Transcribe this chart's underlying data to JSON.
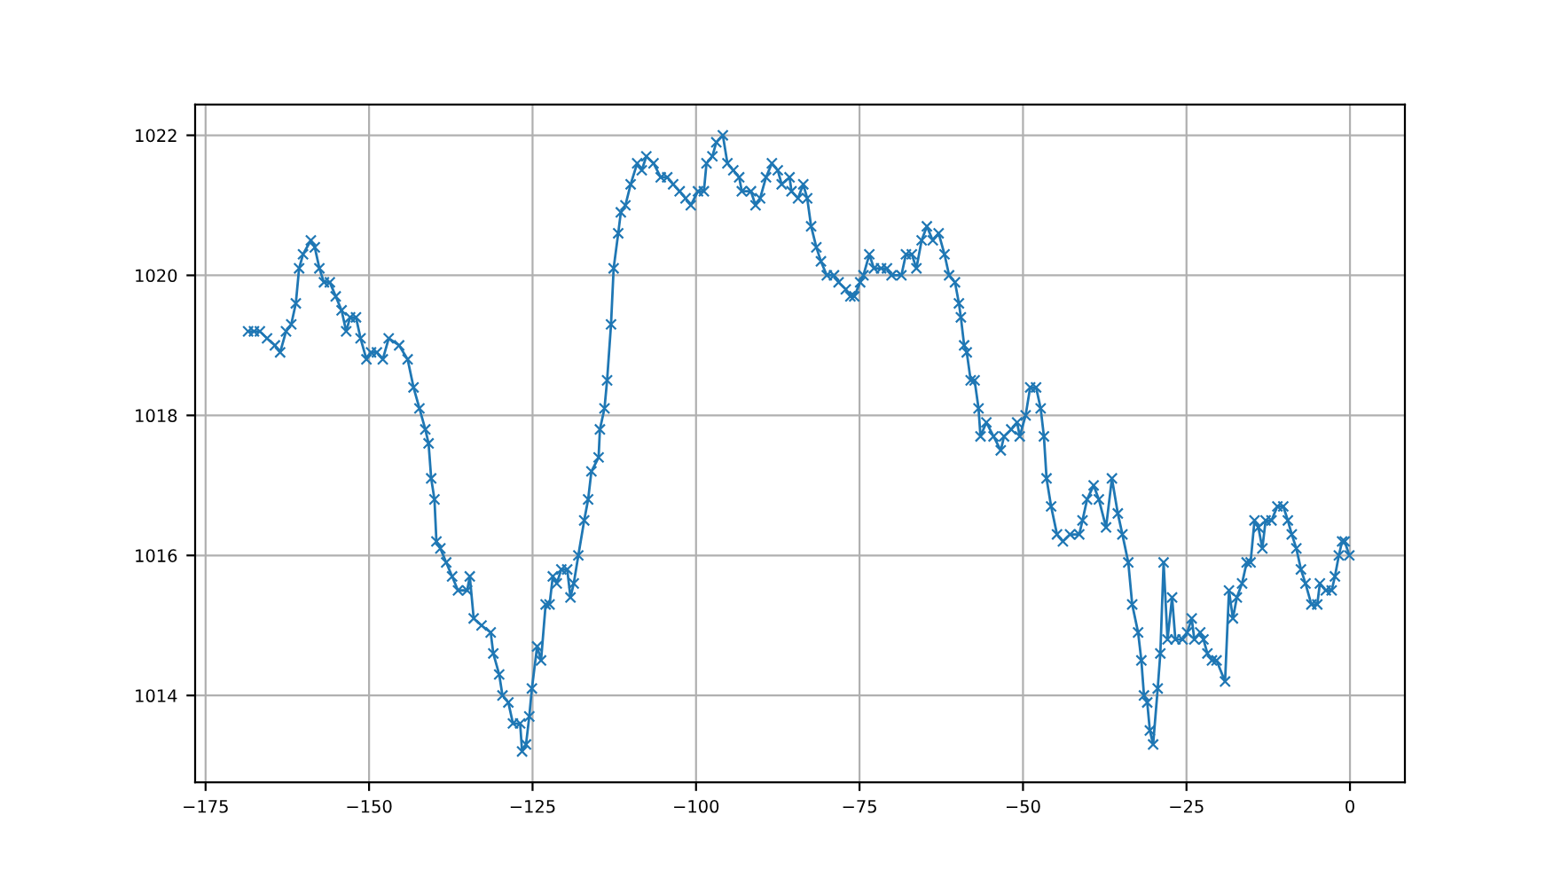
{
  "chart_data": {
    "type": "line",
    "marker": "cross",
    "grid": true,
    "x": [
      -168.5,
      -167.6,
      -166.7,
      -165.6,
      -164.4,
      -163.6,
      -162.7,
      -161.9,
      -161.2,
      -160.7,
      -160.1,
      -158.9,
      -158.3,
      -157.6,
      -156.9,
      -156.0,
      -155.1,
      -154.2,
      -153.5,
      -152.9,
      -152.0,
      -151.3,
      -150.4,
      -149.7,
      -148.8,
      -147.9,
      -147.0,
      -145.4,
      -144.1,
      -143.2,
      -142.3,
      -141.4,
      -140.9,
      -140.5,
      -140.0,
      -139.7,
      -139.1,
      -138.2,
      -137.3,
      -136.4,
      -135.0,
      -134.6,
      -134.0,
      -132.8,
      -131.4,
      -131.0,
      -130.1,
      -129.6,
      -128.7,
      -128.0,
      -126.9,
      -126.6,
      -126.0,
      -125.5,
      -125.1,
      -124.3,
      -123.7,
      -123.0,
      -122.4,
      -121.9,
      -121.3,
      -120.6,
      -119.7,
      -119.2,
      -118.7,
      -118.0,
      -117.1,
      -116.5,
      -116.0,
      -114.9,
      -114.7,
      -114.0,
      -113.6,
      -113.0,
      -112.6,
      -111.9,
      -111.5,
      -110.8,
      -110.0,
      -109.0,
      -108.3,
      -107.6,
      -106.5,
      -105.4,
      -104.4,
      -103.5,
      -102.5,
      -101.6,
      -100.8,
      -99.7,
      -98.8,
      -98.4,
      -97.5,
      -96.9,
      -95.9,
      -95.2,
      -94.3,
      -93.4,
      -93.0,
      -91.6,
      -90.9,
      -90.2,
      -89.3,
      -88.4,
      -87.5,
      -86.9,
      -85.7,
      -85.4,
      -84.4,
      -83.6,
      -83.0,
      -82.4,
      -81.6,
      -80.9,
      -80.0,
      -78.9,
      -78.2,
      -77.1,
      -76.4,
      -75.8,
      -74.9,
      -74.4,
      -73.5,
      -72.8,
      -71.7,
      -70.8,
      -70.1,
      -68.6,
      -67.9,
      -67.0,
      -66.3,
      -65.5,
      -64.7,
      -63.8,
      -62.9,
      -62.0,
      -61.3,
      -60.4,
      -59.8,
      -59.5,
      -59.0,
      -58.6,
      -58.0,
      -57.4,
      -56.8,
      -56.5,
      -55.6,
      -54.5,
      -53.4,
      -52.9,
      -51.8,
      -50.9,
      -50.5,
      -49.6,
      -48.9,
      -48.0,
      -47.3,
      -46.8,
      -46.4,
      -45.7,
      -44.8,
      -43.9,
      -42.8,
      -41.4,
      -40.9,
      -40.2,
      -39.2,
      -38.4,
      -37.3,
      -36.4,
      -35.5,
      -34.8,
      -33.9,
      -33.3,
      -32.4,
      -31.9,
      -31.5,
      -31.0,
      -30.6,
      -30.1,
      -29.4,
      -29.0,
      -28.5,
      -27.9,
      -27.2,
      -26.7,
      -25.6,
      -24.9,
      -24.2,
      -23.8,
      -22.9,
      -22.4,
      -21.8,
      -21.1,
      -20.4,
      -19.1,
      -18.5,
      -17.9,
      -17.3,
      -16.5,
      -15.8,
      -15.2,
      -14.6,
      -14.0,
      -13.4,
      -12.9,
      -12.0,
      -11.1,
      -10.2,
      -9.5,
      -8.9,
      -8.2,
      -7.5,
      -6.8,
      -5.9,
      -5.0,
      -4.6,
      -3.7,
      -2.8,
      -2.3,
      -1.7,
      -1.2,
      -0.8,
      -0.1
    ],
    "series": [
      {
        "color": "#1f77b4",
        "values": [
          1019.2,
          1019.2,
          1019.2,
          1019.1,
          1019.0,
          1018.9,
          1019.2,
          1019.3,
          1019.6,
          1020.1,
          1020.3,
          1020.5,
          1020.4,
          1020.1,
          1019.9,
          1019.9,
          1019.7,
          1019.5,
          1019.2,
          1019.4,
          1019.4,
          1019.1,
          1018.8,
          1018.9,
          1018.9,
          1018.8,
          1019.1,
          1019.0,
          1018.8,
          1018.4,
          1018.1,
          1017.8,
          1017.6,
          1017.1,
          1016.8,
          1016.2,
          1016.1,
          1015.9,
          1015.7,
          1015.5,
          1015.5,
          1015.7,
          1015.1,
          1015.0,
          1014.9,
          1014.6,
          1014.3,
          1014.0,
          1013.9,
          1013.6,
          1013.6,
          1013.2,
          1013.3,
          1013.7,
          1014.1,
          1014.7,
          1014.5,
          1015.3,
          1015.3,
          1015.7,
          1015.6,
          1015.8,
          1015.8,
          1015.4,
          1015.6,
          1016.0,
          1016.5,
          1016.8,
          1017.2,
          1017.4,
          1017.8,
          1018.1,
          1018.5,
          1019.3,
          1020.1,
          1020.6,
          1020.9,
          1021.0,
          1021.3,
          1021.6,
          1021.5,
          1021.7,
          1021.6,
          1021.4,
          1021.4,
          1021.3,
          1021.2,
          1021.1,
          1021.0,
          1021.2,
          1021.2,
          1021.6,
          1021.7,
          1021.9,
          1022.0,
          1021.6,
          1021.5,
          1021.4,
          1021.2,
          1021.2,
          1021.0,
          1021.1,
          1021.4,
          1021.6,
          1021.5,
          1021.3,
          1021.4,
          1021.2,
          1021.1,
          1021.3,
          1021.1,
          1020.7,
          1020.4,
          1020.2,
          1020.0,
          1020.0,
          1019.9,
          1019.8,
          1019.7,
          1019.7,
          1019.9,
          1020.0,
          1020.3,
          1020.1,
          1020.1,
          1020.1,
          1020.0,
          1020.0,
          1020.3,
          1020.3,
          1020.1,
          1020.5,
          1020.7,
          1020.5,
          1020.6,
          1020.3,
          1020.0,
          1019.9,
          1019.6,
          1019.4,
          1019.0,
          1018.9,
          1018.5,
          1018.5,
          1018.1,
          1017.7,
          1017.9,
          1017.7,
          1017.5,
          1017.7,
          1017.8,
          1017.9,
          1017.7,
          1018.0,
          1018.4,
          1018.4,
          1018.1,
          1017.7,
          1017.1,
          1016.7,
          1016.3,
          1016.2,
          1016.3,
          1016.3,
          1016.5,
          1016.8,
          1017.0,
          1016.8,
          1016.4,
          1017.1,
          1016.6,
          1016.3,
          1015.9,
          1015.3,
          1014.9,
          1014.5,
          1014.0,
          1013.9,
          1013.5,
          1013.3,
          1014.1,
          1014.6,
          1015.9,
          1014.8,
          1015.4,
          1014.8,
          1014.8,
          1014.9,
          1015.1,
          1014.8,
          1014.9,
          1014.8,
          1014.6,
          1014.5,
          1014.5,
          1014.2,
          1015.5,
          1015.1,
          1015.4,
          1015.6,
          1015.9,
          1015.9,
          1016.5,
          1016.4,
          1016.1,
          1016.5,
          1016.5,
          1016.7,
          1016.7,
          1016.5,
          1016.3,
          1016.1,
          1015.8,
          1015.6,
          1015.3,
          1015.3,
          1015.6,
          1015.5,
          1015.5,
          1015.7,
          1016.0,
          1016.2,
          1016.2,
          1016.0
        ]
      }
    ],
    "xlim": [
      -176.6,
      8.4
    ],
    "ylim": [
      1012.76,
      1022.44
    ],
    "xticks": [
      {
        "value": -175,
        "label": "−175"
      },
      {
        "value": -150,
        "label": "−150"
      },
      {
        "value": -125,
        "label": "−125"
      },
      {
        "value": -100,
        "label": "−100"
      },
      {
        "value": -75,
        "label": "−75"
      },
      {
        "value": -50,
        "label": "−50"
      },
      {
        "value": -25,
        "label": "−25"
      },
      0
    ],
    "yticks": [
      1014,
      1016,
      1018,
      1020,
      1022
    ]
  }
}
